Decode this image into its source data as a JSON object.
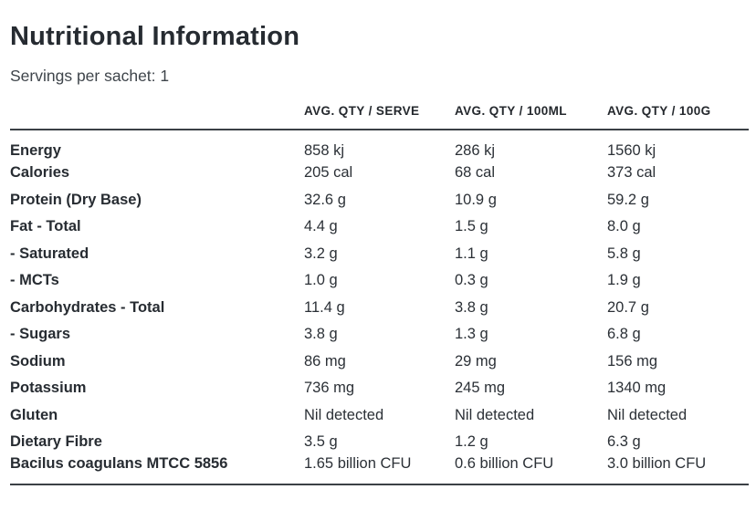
{
  "page": {
    "title": "Nutritional Information",
    "servings_note": "Servings per sachet: 1"
  },
  "table": {
    "columns": [
      "AVG. QTY / SERVE",
      "AVG. QTY / 100ML",
      "AVG. QTY / 100G"
    ],
    "rows": [
      {
        "label": "Energy",
        "serve": "858 kj",
        "per_100ml": "286 kj",
        "per_100g": "1560 kj"
      },
      {
        "label": "Calories",
        "serve": "205 cal",
        "per_100ml": "68 cal",
        "per_100g": "373 cal"
      },
      {
        "label": "Protein (Dry Base)",
        "serve": "32.6 g",
        "per_100ml": "10.9 g",
        "per_100g": "59.2 g"
      },
      {
        "label": "Fat - Total",
        "serve": "4.4 g",
        "per_100ml": "1.5 g",
        "per_100g": "8.0 g"
      },
      {
        "label": "- Saturated",
        "serve": "3.2 g",
        "per_100ml": "1.1 g",
        "per_100g": "5.8 g"
      },
      {
        "label": "- MCTs",
        "serve": "1.0 g",
        "per_100ml": "0.3 g",
        "per_100g": "1.9 g"
      },
      {
        "label": "Carbohydrates - Total",
        "serve": "11.4 g",
        "per_100ml": "3.8 g",
        "per_100g": "20.7 g"
      },
      {
        "label": "- Sugars",
        "serve": "3.8 g",
        "per_100ml": "1.3 g",
        "per_100g": "6.8 g"
      },
      {
        "label": "Sodium",
        "serve": "86 mg",
        "per_100ml": "29 mg",
        "per_100g": "156 mg"
      },
      {
        "label": "Potassium",
        "serve": "736 mg",
        "per_100ml": "245 mg",
        "per_100g": "1340 mg"
      },
      {
        "label": "Gluten",
        "serve": "Nil detected",
        "per_100ml": "Nil detected",
        "per_100g": "Nil detected"
      },
      {
        "label": "Dietary Fibre",
        "serve": "3.5 g",
        "per_100ml": "1.2 g",
        "per_100g": "6.3 g"
      },
      {
        "label": "Bacilus coagulans MTCC 5856",
        "serve": "1.65 billion CFU",
        "per_100ml": "0.6 billion CFU",
        "per_100g": "3.0 billion CFU"
      }
    ]
  },
  "colors": {
    "background": "#ffffff",
    "title_text": "#262b31",
    "body_text": "#2b3036",
    "subtitle_text": "#3f454b",
    "rule": "#3b4045"
  }
}
